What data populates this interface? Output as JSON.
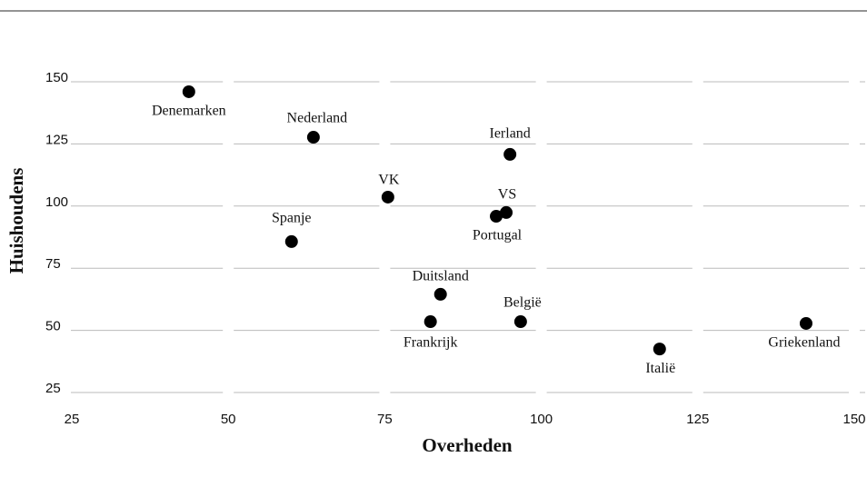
{
  "chart_data": {
    "type": "scatter",
    "x_label": "Overheden",
    "y_label": "Huishoudens",
    "labels": [
      "Denemarken",
      "Nederland",
      "Ierland",
      "VK",
      "VS",
      "Portugal",
      "Spanje",
      "Duitsland",
      "België",
      "Frankrijk",
      "Italië",
      "Griekenland"
    ],
    "x": [
      43.7,
      63.6,
      95,
      75.5,
      94.4,
      92.8,
      60.1,
      83.9,
      96.7,
      82.3,
      118.9,
      142.3
    ],
    "values": [
      146,
      127.7,
      120.8,
      103.6,
      97.4,
      95.9,
      85.7,
      64.5,
      53.5,
      53.5,
      42.5,
      52.8
    ],
    "color": "#000000",
    "xlim": [
      25,
      150
    ],
    "xticks": [
      25,
      50,
      75,
      100,
      125,
      150
    ],
    "ylim": [
      25,
      150
    ],
    "yticks": [
      25,
      50,
      75,
      100,
      125,
      150
    ],
    "grid": true
  }
}
